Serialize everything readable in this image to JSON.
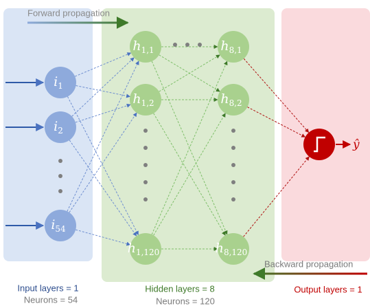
{
  "forward": "Forward propagation",
  "backward": "Backward propagation",
  "input": {
    "nodes": [
      {
        "base": "i",
        "sub": "1"
      },
      {
        "base": "i",
        "sub": "2"
      },
      {
        "base": "i",
        "sub": "54"
      }
    ],
    "caption": "Input layers = 1",
    "neurons": "Neurons = 54"
  },
  "hidden": {
    "nodes": [
      {
        "base": "h",
        "sub": "1,1"
      },
      {
        "base": "h",
        "sub": "1,2"
      },
      {
        "base": "h",
        "sub": "1,120"
      },
      {
        "base": "h",
        "sub": "8,1"
      },
      {
        "base": "h",
        "sub": "8,2"
      },
      {
        "base": "h",
        "sub": "8,120"
      }
    ],
    "caption": "Hidden layers = 8",
    "neurons": "Neurons = 120"
  },
  "output": {
    "caption": "Output layers = 1",
    "result": "ŷ"
  }
}
